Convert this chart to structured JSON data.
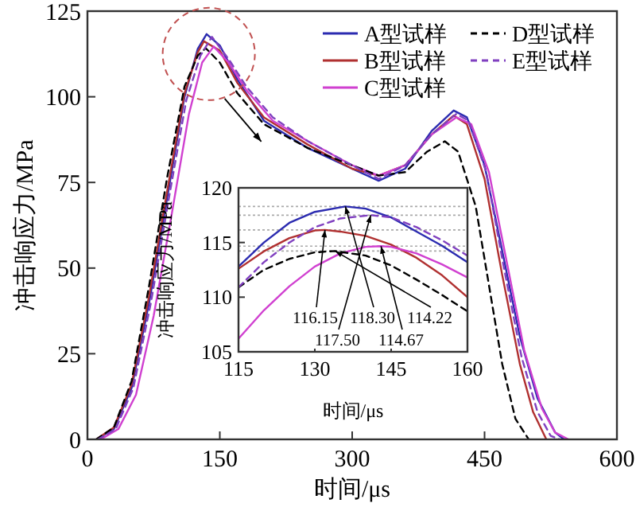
{
  "chart_data": [
    {
      "type": "line",
      "xlabel": "时间/μs",
      "ylabel": "冲击响应力/MPa",
      "xlim": [
        0,
        600
      ],
      "ylim": [
        0,
        125
      ],
      "xticks": [
        0,
        150,
        300,
        450,
        600
      ],
      "yticks": [
        0,
        25,
        50,
        75,
        100,
        125
      ],
      "legend": "top right",
      "series": [
        {
          "name": "A型试样",
          "color": "#2b2bb0",
          "line_style": "solid",
          "x": [
            10,
            30,
            50,
            70,
            90,
            110,
            125,
            135,
            150,
            170,
            200,
            250,
            300,
            330,
            360,
            390,
            415,
            430,
            450,
            470,
            490,
            510,
            530,
            540
          ],
          "values": [
            0,
            3,
            15,
            40,
            70,
            100,
            114,
            118.3,
            115,
            105,
            93,
            85,
            79,
            75.5,
            79,
            90,
            96,
            94,
            80,
            55,
            30,
            12,
            2,
            0
          ]
        },
        {
          "name": "B型试样",
          "color": "#b03030",
          "line_style": "solid",
          "x": [
            10,
            30,
            50,
            70,
            90,
            110,
            125,
            132,
            150,
            170,
            200,
            250,
            300,
            330,
            360,
            390,
            415,
            430,
            450,
            470,
            490,
            505,
            520
          ],
          "values": [
            0,
            3.5,
            16,
            42,
            72,
            101,
            113,
            116.2,
            113.5,
            104,
            94,
            86,
            79,
            77,
            80,
            89,
            94.5,
            92,
            76,
            48,
            22,
            8,
            0
          ]
        },
        {
          "name": "C型试样",
          "color": "#d040d0",
          "line_style": "solid",
          "x": [
            15,
            35,
            55,
            75,
            95,
            115,
            130,
            143,
            160,
            180,
            210,
            250,
            300,
            330,
            360,
            390,
            418,
            435,
            455,
            475,
            495,
            515,
            530,
            545
          ],
          "values": [
            0,
            3,
            13,
            36,
            65,
            95,
            110,
            114.7,
            110,
            102,
            93,
            87,
            80,
            77,
            80,
            89,
            94,
            92,
            78,
            52,
            26,
            9,
            2,
            0
          ]
        },
        {
          "name": "D型试样",
          "color": "#000000",
          "line_style": "dashed",
          "x": [
            10,
            30,
            50,
            70,
            90,
            110,
            125,
            134,
            150,
            170,
            200,
            250,
            300,
            330,
            360,
            385,
            405,
            420,
            440,
            455,
            470,
            485,
            500
          ],
          "values": [
            0,
            3.5,
            17,
            45,
            76,
            103,
            112,
            114.2,
            110,
            101,
            92,
            85,
            80,
            77,
            78,
            84,
            87,
            84,
            68,
            45,
            22,
            6,
            0
          ]
        },
        {
          "name": "E型试样",
          "color": "#8040c0",
          "line_style": "dashed",
          "x": [
            12,
            32,
            52,
            72,
            92,
            112,
            128,
            141,
            160,
            180,
            210,
            250,
            300,
            330,
            360,
            390,
            418,
            432,
            452,
            472,
            492,
            510,
            525,
            535
          ],
          "values": [
            0,
            3,
            15,
            40,
            70,
            99,
            112,
            117.5,
            111,
            103,
            94,
            87,
            80,
            76,
            80,
            89,
            95,
            93,
            78,
            50,
            24,
            8,
            1,
            0
          ]
        }
      ]
    },
    {
      "type": "line",
      "xlabel": "时间/μs",
      "ylabel": "冲击响应力/MPa",
      "xlim": [
        115,
        160
      ],
      "ylim": [
        105,
        120
      ],
      "xticks": [
        115,
        130,
        145,
        160
      ],
      "yticks": [
        105,
        110,
        115,
        120
      ],
      "ref_lines": [
        {
          "axis": "y",
          "value": 118.3,
          "color": "#aaaaaa",
          "line_style": "dotted"
        },
        {
          "axis": "y",
          "value": 117.5,
          "color": "#aaaaaa",
          "line_style": "dotted"
        },
        {
          "axis": "y",
          "value": 116.15,
          "color": "#aaaaaa",
          "line_style": "dotted"
        },
        {
          "axis": "y",
          "value": 114.67,
          "color": "#aaaaaa",
          "line_style": "dotted"
        },
        {
          "axis": "y",
          "value": 114.22,
          "color": "#aaaaaa",
          "line_style": "dotted"
        }
      ],
      "annotations": [
        {
          "text": "116.15",
          "x": 132,
          "y": 116.15
        },
        {
          "text": "118.30",
          "x": 136,
          "y": 118.3
        },
        {
          "text": "114.22",
          "x": 134,
          "y": 114.22
        },
        {
          "text": "117.50",
          "x": 141,
          "y": 117.5
        },
        {
          "text": "114.67",
          "x": 143,
          "y": 114.67
        }
      ],
      "series": [
        {
          "color": "#2b2bb0",
          "line_style": "solid",
          "x": [
            115,
            120,
            125,
            130,
            136,
            140,
            145,
            150,
            155,
            160
          ],
          "values": [
            112.8,
            115,
            116.8,
            117.8,
            118.3,
            118.1,
            117.3,
            116,
            114.7,
            113.2
          ]
        },
        {
          "color": "#b03030",
          "line_style": "solid",
          "x": [
            115,
            120,
            125,
            130,
            132,
            135,
            140,
            145,
            150,
            155,
            160
          ],
          "values": [
            112.6,
            114.2,
            115.4,
            116.1,
            116.15,
            116,
            115.6,
            114.8,
            113.6,
            112,
            110
          ]
        },
        {
          "color": "#d040d0",
          "line_style": "solid",
          "x": [
            115,
            120,
            125,
            130,
            135,
            140,
            143,
            145,
            150,
            155,
            160
          ],
          "values": [
            106.2,
            108.8,
            111,
            112.8,
            114,
            114.6,
            114.67,
            114.6,
            114,
            113,
            111.8
          ]
        },
        {
          "color": "#000000",
          "line_style": "dashed",
          "x": [
            115,
            120,
            125,
            130,
            134,
            140,
            145,
            150,
            155,
            160
          ],
          "values": [
            110.9,
            112.5,
            113.5,
            114.1,
            114.22,
            113.8,
            112.9,
            111.6,
            110.2,
            108.7
          ]
        },
        {
          "color": "#8040c0",
          "line_style": "dashed",
          "x": [
            115,
            120,
            125,
            130,
            135,
            141,
            145,
            150,
            155,
            160
          ],
          "values": [
            110.9,
            113.2,
            115,
            116.4,
            117.2,
            117.5,
            117.3,
            116.4,
            115.2,
            113.8
          ]
        }
      ]
    }
  ]
}
